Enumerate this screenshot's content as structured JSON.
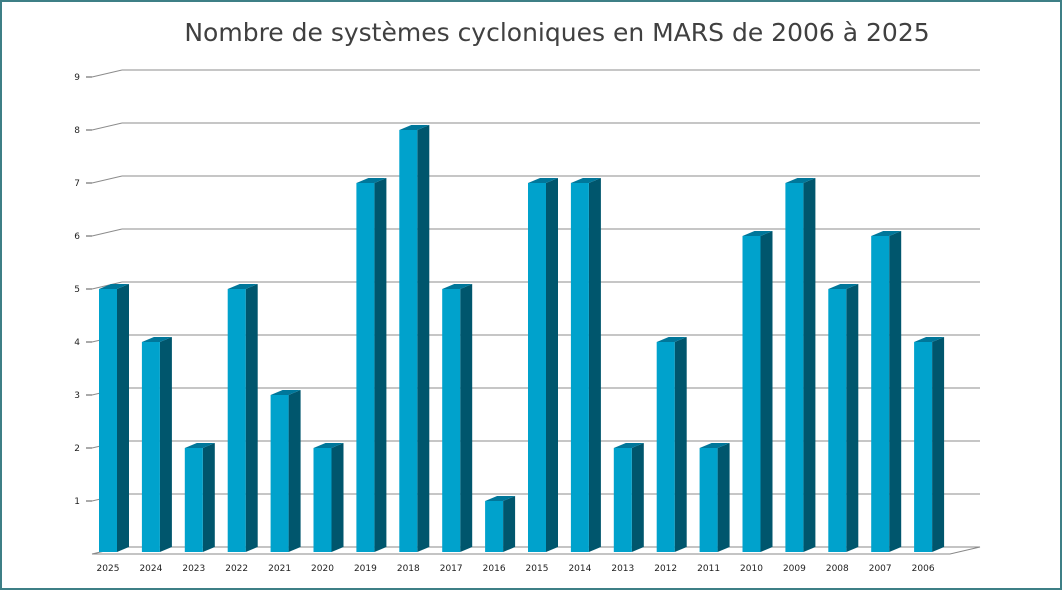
{
  "chart_data": {
    "type": "bar",
    "title": "Nombre de systèmes cycloniques en MARS de 2006 à 2025",
    "xlabel": "",
    "ylabel": "",
    "ylim": [
      0,
      9
    ],
    "yticks": [
      1,
      2,
      3,
      4,
      5,
      6,
      7,
      8,
      9
    ],
    "grid": true,
    "style": "3d-column",
    "colors": {
      "front": "#00a2cc",
      "side": "#00566d",
      "top": "#00779a"
    },
    "categories": [
      "2025",
      "2024",
      "2023",
      "2022",
      "2021",
      "2020",
      "2019",
      "2018",
      "2017",
      "2016",
      "2015",
      "2014",
      "2013",
      "2012",
      "2011",
      "2010",
      "2009",
      "2008",
      "2007",
      "2006"
    ],
    "values": [
      5,
      4,
      2,
      5,
      3,
      2,
      7,
      8,
      5,
      1,
      7,
      7,
      2,
      4,
      2,
      6,
      7,
      5,
      6,
      4
    ]
  }
}
